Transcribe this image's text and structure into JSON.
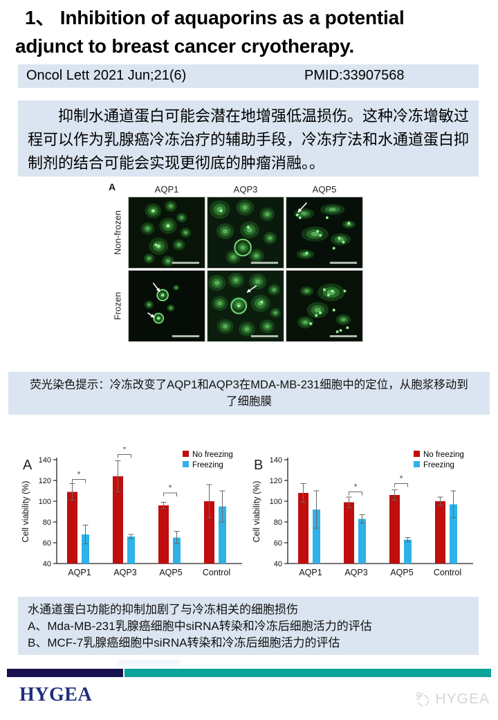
{
  "title": {
    "line1": "1、 Inhibition of aquaporins as a potential",
    "line2": "adjunct to breast cancer cryotherapy."
  },
  "journal": {
    "citation": "Oncol Lett 2021 Jun;21(6)",
    "pmid": "PMID:33907568"
  },
  "abstract": {
    "text": "抑制水通道蛋白可能会潜在地增强低温损伤。这种冷冻增敏过程可以作为乳腺癌冷冻治疗的辅助手段，冷冻疗法和水通道蛋白抑制剂的结合可能会实现更彻底的肿瘤消融。。"
  },
  "figure": {
    "panel_label": "A",
    "columns": [
      "AQP1",
      "AQP3",
      "AQP5"
    ],
    "rows": [
      "Non-frozen",
      "Frozen"
    ]
  },
  "figure_caption": {
    "text": "荧光染色提示：冷冻改变了AQP1和AQP3在MDA-MB-231细胞中的定位，从胞浆移动到了细胞膜"
  },
  "chart_data": [
    {
      "type": "bar",
      "panel": "A",
      "ylabel": "Cell viability (%)",
      "ylim": [
        40,
        140
      ],
      "yticks": [
        40,
        60,
        80,
        100,
        120,
        140
      ],
      "categories": [
        "AQP1",
        "AQP3",
        "AQP5",
        "Control"
      ],
      "series": [
        {
          "name": "No freezing",
          "color": "#c00d0d",
          "values": [
            109,
            124,
            96,
            100
          ],
          "errors": [
            8,
            15,
            3,
            16
          ]
        },
        {
          "name": "Freezing",
          "color": "#2eb2e8",
          "values": [
            68,
            66,
            65,
            95
          ],
          "errors": [
            9,
            2,
            6,
            15
          ]
        }
      ],
      "significance": [
        {
          "category": 0,
          "y": 121,
          "marker": "*"
        },
        {
          "category": 1,
          "y": 145,
          "marker": "*"
        },
        {
          "category": 2,
          "y": 108,
          "marker": "*"
        }
      ],
      "legend_position": "top-right",
      "grid": false
    },
    {
      "type": "bar",
      "panel": "B",
      "ylabel": "Cell viability (%)",
      "ylim": [
        40,
        140
      ],
      "yticks": [
        40,
        60,
        80,
        100,
        120,
        140
      ],
      "categories": [
        "AQP1",
        "AQP3",
        "AQP5",
        "Control"
      ],
      "series": [
        {
          "name": "No freezing",
          "color": "#c00d0d",
          "values": [
            108,
            99,
            106,
            100
          ],
          "errors": [
            9,
            5,
            5,
            4
          ]
        },
        {
          "name": "Freezing",
          "color": "#2eb2e8",
          "values": [
            92,
            83,
            63,
            97
          ],
          "errors": [
            18,
            4,
            2,
            13
          ]
        }
      ],
      "significance": [
        {
          "category": 1,
          "y": 109,
          "marker": "*"
        },
        {
          "category": 2,
          "y": 117,
          "marker": "*"
        }
      ],
      "legend_position": "top-right",
      "grid": false
    }
  ],
  "notes": {
    "line1": "水通道蛋白功能的抑制加剧了与冷冻相关的细胞损伤",
    "line2": "A、Mda-MB-231乳腺癌细胞中siRNA转染和冷冻后细胞活力的评估",
    "line3": "B、MCF-7乳腺癌细胞中siRNA转染和冷冻后细胞活力的评估"
  },
  "footer": {
    "brand": "HYGEA",
    "watermark": "HYGEA"
  },
  "colors": {
    "light_blue_block": "#dbe5f1",
    "bar_red": "#c00d0d",
    "bar_blue": "#2eb2e8",
    "footer_navy": "#17104e",
    "footer_teal": "#08a39a",
    "brand_navy": "#1f2e7e",
    "micrograph_green": "#4fbf4f"
  }
}
